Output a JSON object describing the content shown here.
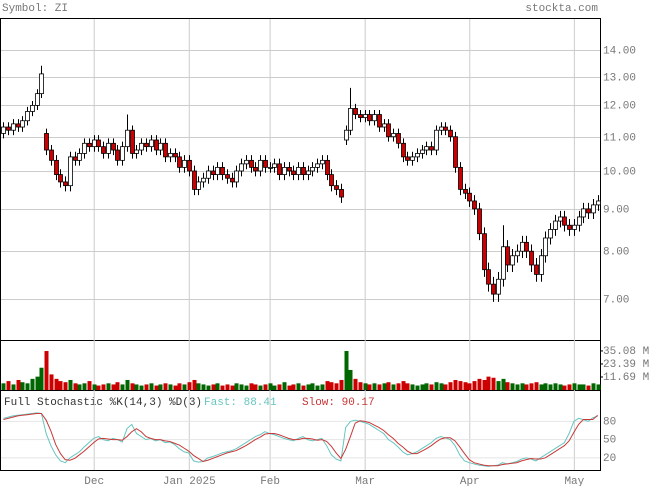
{
  "chart_data": {
    "type": "candlestick",
    "symbol_label": "Symbol: ZI",
    "source": "stockta.com",
    "open": [
      11.1,
      11.3,
      11.2,
      11.4,
      11.3,
      11.5,
      11.8,
      12.0,
      12.4,
      11.1,
      10.6,
      10.3,
      9.9,
      9.7,
      9.6,
      10.4,
      10.3,
      10.5,
      10.8,
      10.7,
      10.9,
      10.7,
      10.5,
      10.8,
      10.6,
      10.3,
      10.7,
      11.2,
      10.5,
      10.6,
      10.8,
      10.7,
      10.9,
      10.6,
      10.8,
      10.4,
      10.5,
      10.4,
      10.1,
      10.3,
      10.0,
      9.5,
      9.7,
      9.8,
      10.0,
      9.9,
      10.1,
      9.9,
      9.8,
      9.7,
      10.0,
      10.2,
      10.3,
      10.1,
      10.0,
      10.3,
      10.1,
      10.1,
      10.2,
      9.9,
      10.1,
      10.0,
      9.9,
      10.1,
      9.9,
      10.0,
      10.1,
      10.2,
      10.3,
      9.9,
      9.6,
      9.5,
      10.9,
      11.2,
      11.9,
      11.7,
      11.6,
      11.7,
      11.5,
      11.7,
      11.3,
      11.4,
      11.0,
      11.1,
      10.8,
      10.4,
      10.3,
      10.4,
      10.5,
      10.6,
      10.7,
      10.6,
      11.2,
      11.3,
      11.2,
      11.0,
      10.1,
      9.5,
      9.4,
      9.2,
      9.0,
      8.4,
      7.6,
      7.3,
      7.1,
      7.4,
      8.1,
      7.7,
      7.9,
      8.0,
      8.2,
      8.0,
      7.7,
      7.5,
      7.9,
      8.3,
      8.5,
      8.7,
      8.8,
      8.6,
      8.5,
      8.6,
      8.8,
      9.0,
      8.9,
      9.1
    ],
    "high": [
      11.45,
      11.45,
      11.55,
      11.55,
      11.65,
      11.95,
      12.15,
      12.55,
      13.4,
      11.25,
      10.75,
      10.45,
      10.05,
      9.85,
      10.55,
      10.55,
      10.65,
      10.95,
      10.95,
      11.05,
      11.05,
      10.85,
      10.95,
      10.95,
      10.75,
      10.85,
      11.7,
      11.35,
      10.75,
      10.95,
      10.95,
      11.05,
      11.05,
      10.95,
      10.95,
      10.65,
      10.65,
      10.55,
      10.45,
      10.45,
      10.15,
      9.85,
      9.95,
      10.15,
      10.15,
      10.25,
      10.25,
      10.05,
      9.95,
      10.15,
      10.35,
      10.45,
      10.45,
      10.25,
      10.45,
      10.45,
      10.25,
      10.35,
      10.35,
      10.25,
      10.25,
      10.15,
      10.25,
      10.25,
      10.15,
      10.25,
      10.35,
      10.45,
      10.45,
      10.05,
      9.75,
      9.65,
      11.35,
      12.6,
      12.05,
      11.85,
      11.85,
      11.85,
      11.85,
      11.85,
      11.55,
      11.55,
      11.25,
      11.25,
      10.95,
      10.55,
      10.55,
      10.65,
      10.75,
      10.85,
      10.85,
      11.35,
      11.45,
      11.45,
      11.35,
      11.15,
      10.25,
      9.65,
      9.55,
      9.35,
      9.15,
      8.55,
      7.75,
      7.45,
      7.55,
      8.6,
      8.25,
      8.05,
      8.15,
      8.35,
      8.35,
      8.15,
      7.85,
      8.05,
      8.45,
      8.65,
      8.85,
      8.95,
      8.95,
      8.75,
      8.75,
      8.95,
      9.15,
      9.15,
      9.25,
      9.35
    ],
    "low": [
      10.95,
      11.05,
      11.05,
      11.15,
      11.15,
      11.35,
      11.65,
      11.85,
      12.25,
      10.45,
      10.15,
      9.75,
      9.55,
      9.45,
      9.45,
      10.15,
      10.15,
      10.35,
      10.55,
      10.55,
      10.55,
      10.35,
      10.35,
      10.45,
      10.15,
      10.15,
      10.55,
      10.35,
      10.35,
      10.45,
      10.55,
      10.55,
      10.45,
      10.45,
      10.25,
      10.25,
      10.25,
      9.95,
      9.95,
      9.85,
      9.35,
      9.35,
      9.55,
      9.65,
      9.75,
      9.75,
      9.75,
      9.65,
      9.55,
      9.55,
      9.85,
      10.05,
      9.95,
      9.85,
      9.85,
      9.95,
      9.95,
      9.95,
      9.75,
      9.75,
      9.85,
      9.75,
      9.75,
      9.75,
      9.75,
      9.85,
      9.95,
      10.05,
      9.75,
      9.45,
      9.35,
      9.15,
      10.75,
      11.05,
      11.55,
      11.45,
      11.45,
      11.35,
      11.35,
      11.15,
      11.15,
      10.85,
      10.85,
      10.65,
      10.25,
      10.15,
      10.15,
      10.25,
      10.35,
      10.45,
      10.45,
      10.45,
      11.05,
      11.05,
      10.85,
      9.95,
      9.35,
      9.25,
      9.05,
      8.85,
      8.25,
      7.45,
      7.15,
      6.95,
      6.95,
      7.25,
      7.55,
      7.55,
      7.75,
      7.85,
      7.85,
      7.55,
      7.35,
      7.35,
      7.75,
      8.15,
      8.35,
      8.55,
      8.45,
      8.35,
      8.35,
      8.45,
      8.65,
      8.75,
      8.75,
      8.95
    ],
    "close": [
      11.3,
      11.2,
      11.4,
      11.3,
      11.5,
      11.8,
      12.0,
      12.4,
      13.1,
      10.6,
      10.3,
      9.9,
      9.7,
      9.6,
      10.4,
      10.3,
      10.5,
      10.8,
      10.7,
      10.9,
      10.7,
      10.5,
      10.8,
      10.6,
      10.3,
      10.7,
      11.2,
      10.5,
      10.6,
      10.8,
      10.7,
      10.9,
      10.6,
      10.8,
      10.4,
      10.5,
      10.4,
      10.1,
      10.3,
      10.0,
      9.5,
      9.7,
      9.8,
      10.0,
      9.9,
      10.1,
      9.9,
      9.8,
      9.7,
      10.0,
      10.2,
      10.3,
      10.1,
      10.0,
      10.3,
      10.1,
      10.1,
      10.2,
      9.9,
      10.1,
      10.0,
      9.9,
      10.1,
      9.9,
      10.0,
      10.1,
      10.2,
      10.3,
      9.9,
      9.6,
      9.5,
      9.3,
      11.2,
      11.9,
      11.7,
      11.6,
      11.7,
      11.5,
      11.7,
      11.3,
      11.4,
      11.0,
      11.1,
      10.8,
      10.4,
      10.3,
      10.4,
      10.5,
      10.6,
      10.7,
      10.6,
      11.2,
      11.3,
      11.2,
      11.0,
      10.1,
      9.5,
      9.4,
      9.2,
      9.0,
      8.4,
      7.6,
      7.3,
      7.1,
      7.4,
      8.1,
      7.7,
      7.9,
      8.0,
      8.2,
      8.0,
      7.7,
      7.5,
      7.9,
      8.3,
      8.5,
      8.7,
      8.8,
      8.6,
      8.5,
      8.6,
      8.8,
      9.0,
      8.9,
      9.1,
      9.2
    ],
    "up_color": "#ffffff",
    "down_color": "#cc0000",
    "ylim": [
      6.25,
      15.26
    ],
    "log_scale": true,
    "grid": true,
    "yticks": [
      {
        "value": 14,
        "label": "14.00"
      },
      {
        "value": 13,
        "label": "13.00"
      },
      {
        "value": 12,
        "label": "12.00"
      },
      {
        "value": 11,
        "label": "11.00"
      },
      {
        "value": 10,
        "label": "10.00"
      },
      {
        "value": 9,
        "label": "9.00"
      },
      {
        "value": 8,
        "label": "8.00"
      },
      {
        "value": 7,
        "label": "7.00"
      }
    ],
    "xlim": [
      -0.5,
      125.5
    ],
    "xticks": [
      {
        "value": 19,
        "label": "Dec"
      },
      {
        "value": 39,
        "label": "Jan 2025"
      },
      {
        "value": 56,
        "label": "Feb"
      },
      {
        "value": 76,
        "label": "Mar"
      },
      {
        "value": 98,
        "label": "Apr"
      },
      {
        "value": 120,
        "label": "May"
      }
    ],
    "volume": {
      "values": [
        6,
        8,
        5,
        9,
        7,
        6,
        10,
        12,
        20,
        35,
        14,
        10,
        8,
        7,
        9,
        6,
        5,
        6,
        8,
        5,
        4,
        5,
        6,
        5,
        7,
        5,
        9,
        6,
        5,
        4,
        5,
        6,
        4,
        5,
        6,
        5,
        4,
        6,
        5,
        7,
        9,
        6,
        5,
        4,
        5,
        6,
        4,
        5,
        4,
        6,
        5,
        4,
        6,
        5,
        4,
        5,
        6,
        4,
        5,
        7,
        4,
        5,
        6,
        4,
        5,
        6,
        4,
        5,
        8,
        7,
        6,
        9,
        35,
        18,
        10,
        7,
        6,
        5,
        6,
        5,
        6,
        7,
        5,
        6,
        8,
        6,
        5,
        4,
        5,
        6,
        5,
        7,
        6,
        5,
        7,
        9,
        8,
        7,
        6,
        8,
        10,
        9,
        12,
        11,
        8,
        10,
        7,
        6,
        5,
        6,
        5,
        6,
        7,
        5,
        6,
        5,
        6,
        5,
        4,
        5,
        6,
        5,
        5,
        4,
        6,
        5
      ],
      "up_color": "#006600",
      "down_color": "#cc0000",
      "ylim": [
        0,
        44
      ],
      "yticks": [
        {
          "value": 35.08,
          "label": "35.08 M"
        },
        {
          "value": 23.39,
          "label": "23.39 M"
        },
        {
          "value": 11.69,
          "label": "11.69 M"
        }
      ]
    },
    "stochastic": {
      "title": "Full Stochastic %K(14,3) %D(3)",
      "ylim": [
        0,
        130
      ],
      "yticks": [
        80,
        50,
        20
      ],
      "series": [
        {
          "label": "Fast: 88.41",
          "color": "#66c6c0",
          "values": [
            85,
            87,
            89,
            90,
            91,
            92,
            93,
            94,
            93,
            60,
            40,
            25,
            15,
            12,
            20,
            25,
            30,
            38,
            45,
            52,
            55,
            50,
            48,
            52,
            50,
            46,
            68,
            75,
            60,
            55,
            50,
            52,
            48,
            50,
            45,
            46,
            42,
            35,
            30,
            28,
            15,
            13,
            14,
            20,
            22,
            25,
            28,
            30,
            32,
            35,
            40,
            45,
            50,
            55,
            58,
            63,
            60,
            58,
            55,
            52,
            50,
            48,
            52,
            55,
            50,
            48,
            50,
            52,
            40,
            25,
            18,
            15,
            70,
            80,
            82,
            80,
            78,
            75,
            70,
            65,
            60,
            50,
            45,
            38,
            30,
            25,
            27,
            30,
            35,
            40,
            45,
            52,
            55,
            53,
            50,
            40,
            25,
            15,
            12,
            10,
            8,
            7,
            6,
            7,
            8,
            12,
            10,
            12,
            14,
            18,
            20,
            18,
            15,
            20,
            25,
            30,
            35,
            40,
            45,
            60,
            80,
            85,
            83,
            80,
            86,
            88.41
          ]
        },
        {
          "label": "Slow: 90.17",
          "color": "#c83838",
          "values": [
            83,
            85,
            87,
            89,
            90,
            91,
            92,
            93,
            93,
            82,
            64,
            42,
            27,
            17,
            16,
            19,
            25,
            31,
            38,
            45,
            51,
            52,
            51,
            50,
            50,
            49,
            55,
            63,
            68,
            63,
            55,
            52,
            50,
            50,
            48,
            47,
            44,
            41,
            36,
            31,
            24,
            19,
            14,
            16,
            19,
            22,
            25,
            28,
            30,
            32,
            36,
            40,
            45,
            50,
            54,
            59,
            60,
            60,
            58,
            55,
            52,
            50,
            50,
            52,
            52,
            51,
            49,
            50,
            47,
            39,
            28,
            19,
            34,
            55,
            77,
            81,
            80,
            78,
            74,
            70,
            65,
            58,
            52,
            44,
            38,
            31,
            27,
            27,
            31,
            35,
            40,
            46,
            51,
            53,
            53,
            48,
            38,
            27,
            17,
            12,
            10,
            8,
            7,
            7,
            7,
            9,
            10,
            11,
            12,
            15,
            17,
            19,
            18,
            18,
            20,
            25,
            30,
            35,
            40,
            48,
            62,
            75,
            83,
            83,
            83,
            90.17
          ]
        }
      ]
    }
  }
}
